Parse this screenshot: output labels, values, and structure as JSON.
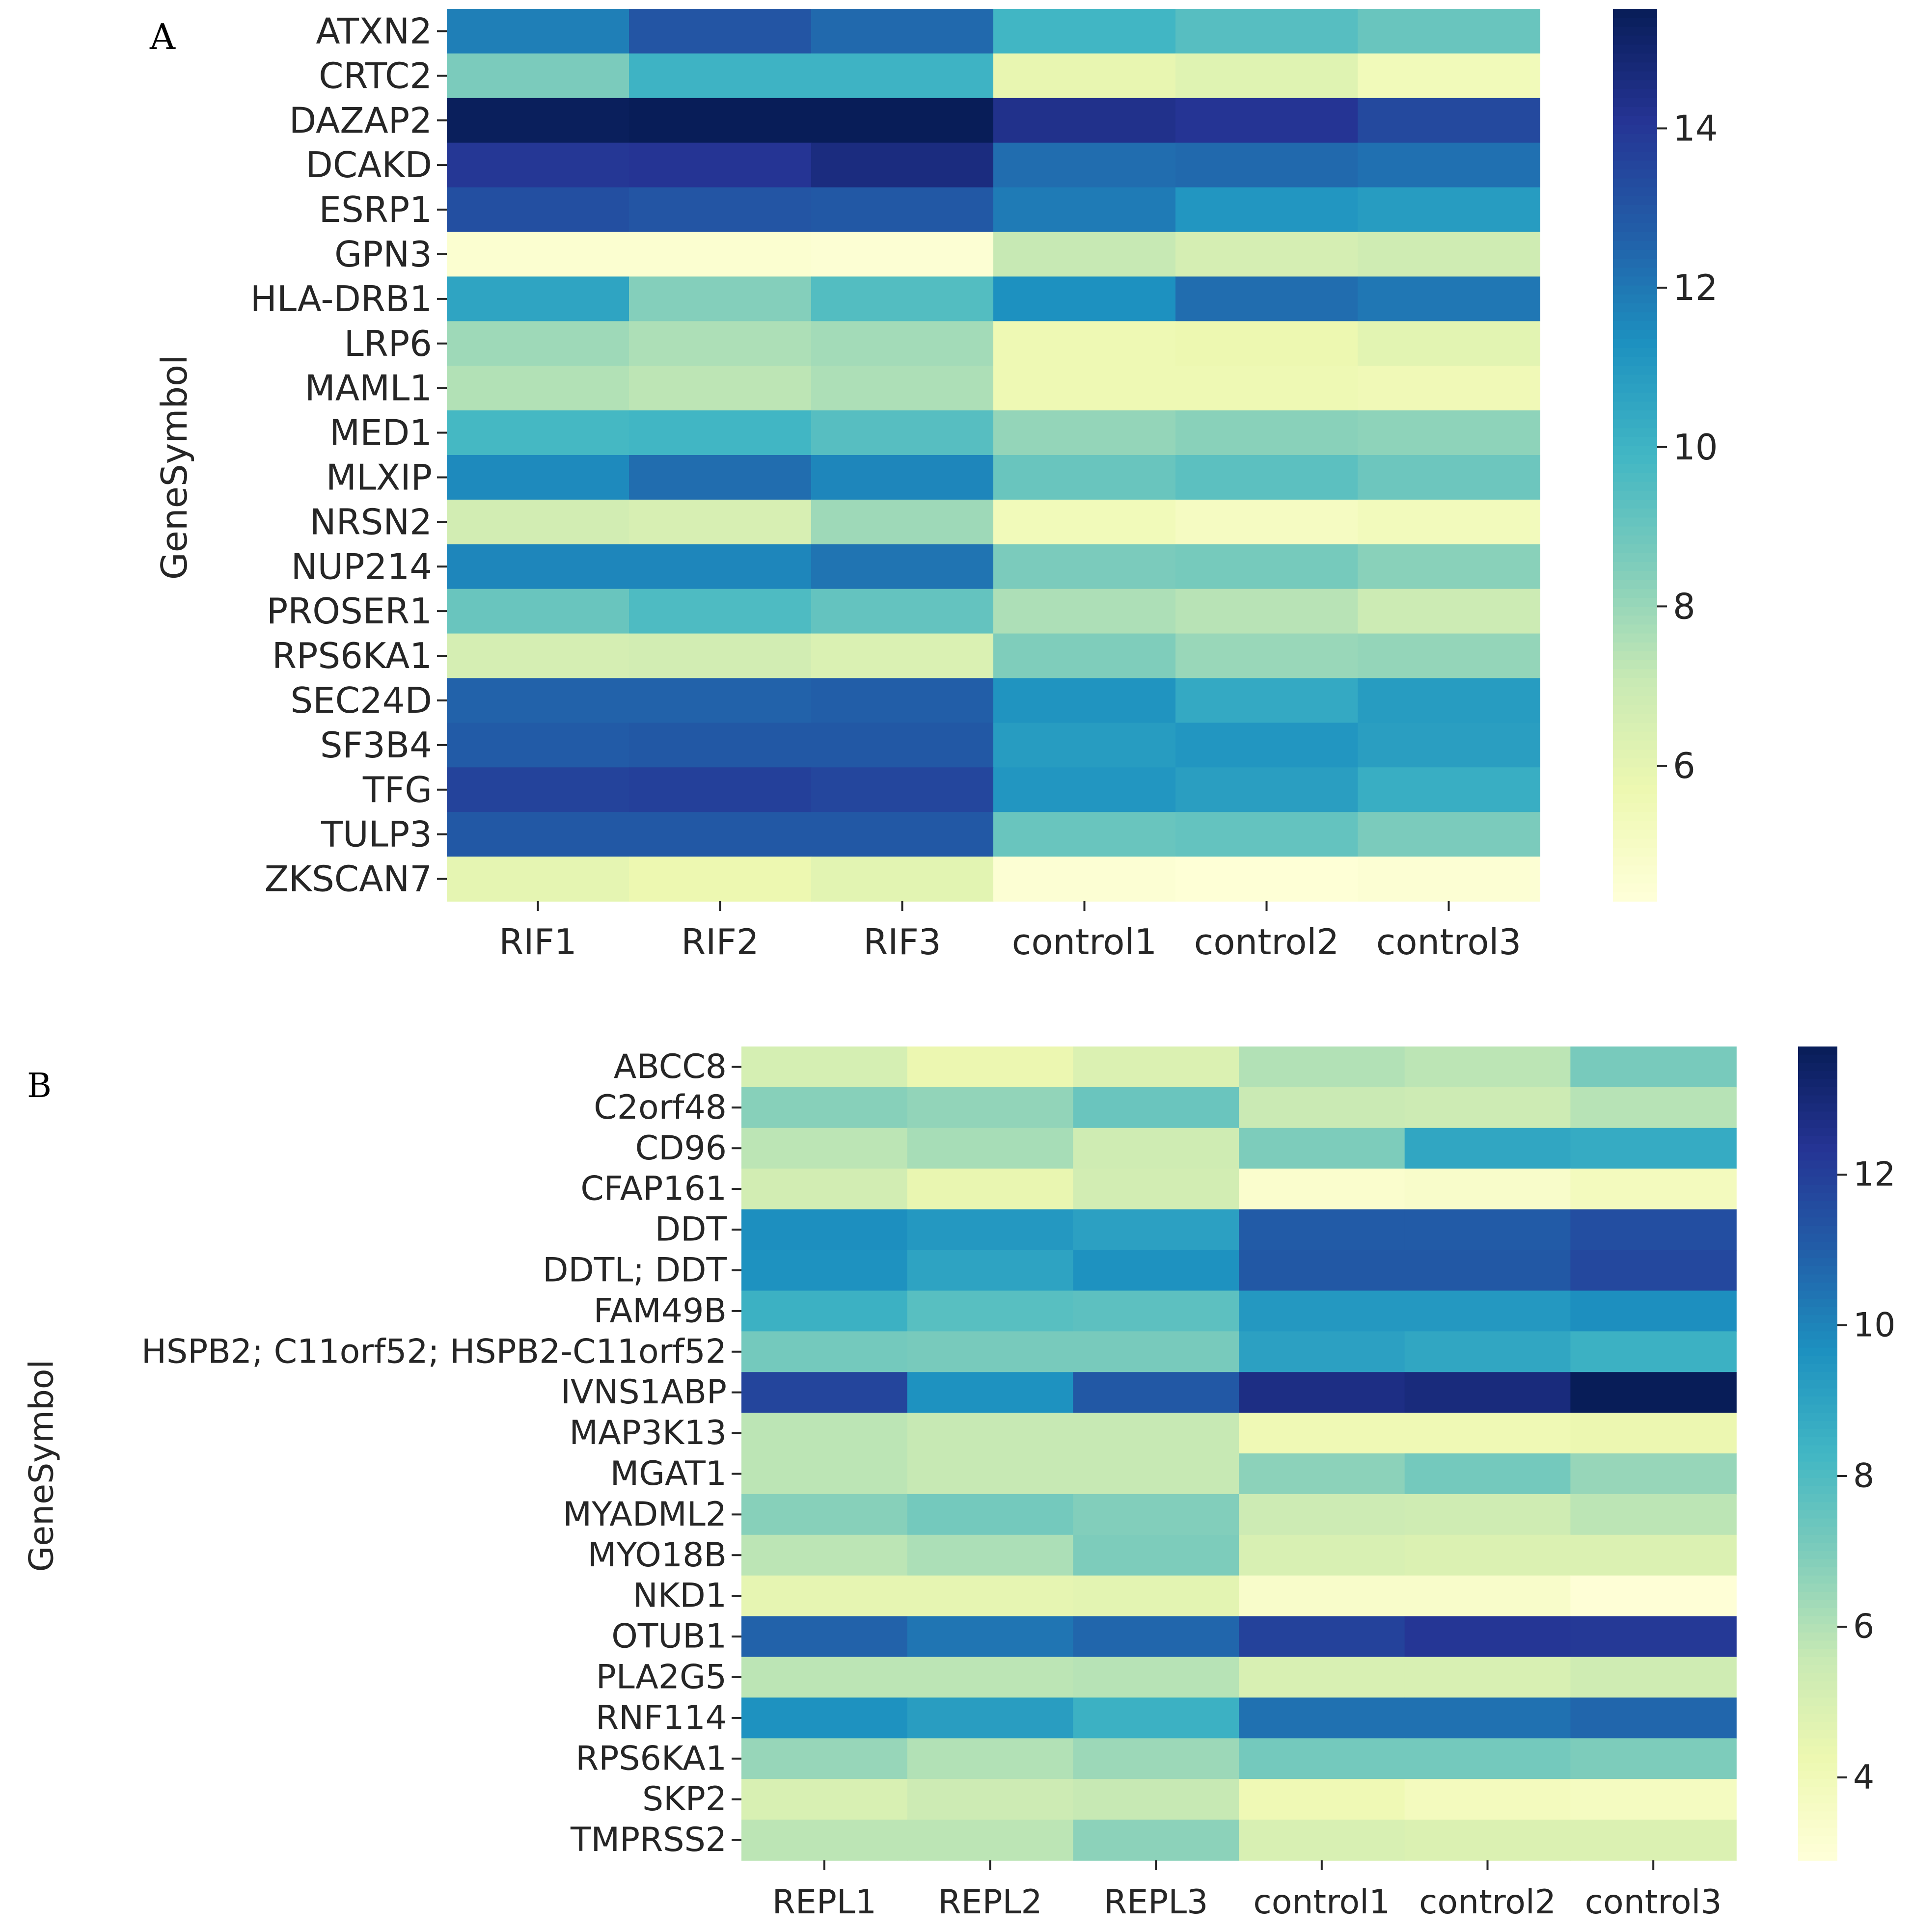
{
  "chart_data": [
    {
      "type": "heatmap",
      "panel_label": "A",
      "ylabel": "GeneSymbol",
      "xlabel": "",
      "colormap": "YlGnBu",
      "colorbar": {
        "min": 4.3,
        "max": 15.5,
        "ticks": [
          6,
          8,
          10,
          12,
          14
        ]
      },
      "columns": [
        "RIF1",
        "RIF2",
        "RIF3",
        "control1",
        "control2",
        "control3"
      ],
      "rows": [
        "ATXN2",
        "CRTC2",
        "DAZAP2",
        "DCAKD",
        "ESRP1",
        "GPN3",
        "HLA-DRB1",
        "LRP6",
        "MAML1",
        "MED1",
        "MLXIP",
        "NRSN2",
        "NUP214",
        "PROSER1",
        "RPS6KA1",
        "SEC24D",
        "SF3B4",
        "TFG",
        "TULP3",
        "ZKSCAN7"
      ],
      "values": [
        [
          11.8,
          13.0,
          12.4,
          9.9,
          9.4,
          9.0
        ],
        [
          8.6,
          10.0,
          10.0,
          5.9,
          6.2,
          5.4
        ],
        [
          15.4,
          15.5,
          15.5,
          14.3,
          14.1,
          13.4
        ],
        [
          14.0,
          14.1,
          14.6,
          12.3,
          12.4,
          12.2
        ],
        [
          13.2,
          13.0,
          12.9,
          11.9,
          11.1,
          10.9
        ],
        [
          4.6,
          4.6,
          4.5,
          7.1,
          6.6,
          6.8
        ],
        [
          10.6,
          8.4,
          9.5,
          11.3,
          12.3,
          12.0
        ],
        [
          7.9,
          7.6,
          7.8,
          5.6,
          5.7,
          6.1
        ],
        [
          7.5,
          7.3,
          7.6,
          5.6,
          5.6,
          5.5
        ],
        [
          9.8,
          9.9,
          9.4,
          8.1,
          8.3,
          8.2
        ],
        [
          11.5,
          12.3,
          11.6,
          9.0,
          9.3,
          8.9
        ],
        [
          6.7,
          6.5,
          7.9,
          5.4,
          5.1,
          5.3
        ],
        [
          11.6,
          11.6,
          12.1,
          8.6,
          8.7,
          8.3
        ],
        [
          9.0,
          9.6,
          9.1,
          7.6,
          7.4,
          6.9
        ],
        [
          6.6,
          6.7,
          6.4,
          8.5,
          8.0,
          8.1
        ],
        [
          12.6,
          12.6,
          12.7,
          11.2,
          10.4,
          10.9
        ],
        [
          12.8,
          12.9,
          12.9,
          10.9,
          11.1,
          10.8
        ],
        [
          13.6,
          13.7,
          13.5,
          11.1,
          10.8,
          10.2
        ],
        [
          12.9,
          12.9,
          12.9,
          9.0,
          9.1,
          8.6
        ],
        [
          6.0,
          5.7,
          6.1,
          4.5,
          4.4,
          4.5
        ]
      ]
    },
    {
      "type": "heatmap",
      "panel_label": "B",
      "ylabel": "GeneSymbol",
      "xlabel": "",
      "colormap": "YlGnBu",
      "colorbar": {
        "min": 2.9,
        "max": 13.7,
        "ticks": [
          4,
          6,
          8,
          10,
          12
        ]
      },
      "columns": [
        "REPL1",
        "REPL2",
        "REPL3",
        "control1",
        "control2",
        "control3"
      ],
      "rows": [
        "ABCC8",
        "C2orf48",
        "CD96",
        "CFAP161",
        "DDT",
        "DDTL; DDT",
        "FAM49B",
        "HSPB2; C11orf52; HSPB2-C11orf52",
        "IVNS1ABP",
        "MAP3K13",
        "MGAT1",
        "MYADML2",
        "MYO18B",
        "NKD1",
        "OTUB1",
        "PLA2G5",
        "RNF114",
        "RPS6KA1",
        "SKP2",
        "TMPRSS2"
      ],
      "values": [
        [
          5.1,
          4.3,
          4.9,
          6.0,
          5.8,
          7.1
        ],
        [
          6.8,
          6.6,
          7.4,
          5.5,
          5.4,
          5.9
        ],
        [
          5.8,
          6.2,
          5.3,
          7.0,
          8.9,
          8.7
        ],
        [
          5.2,
          4.4,
          5.2,
          3.3,
          3.4,
          3.8
        ],
        [
          9.7,
          9.4,
          9.1,
          11.1,
          11.1,
          11.5
        ],
        [
          9.6,
          9.0,
          9.6,
          11.2,
          11.2,
          11.7
        ],
        [
          8.5,
          7.8,
          7.7,
          9.4,
          9.4,
          9.7
        ],
        [
          7.2,
          7.1,
          7.1,
          9.1,
          8.9,
          8.5
        ],
        [
          11.8,
          9.6,
          11.2,
          12.7,
          12.9,
          13.7
        ],
        [
          5.8,
          5.6,
          5.6,
          4.1,
          4.1,
          4.3
        ],
        [
          5.8,
          5.6,
          5.6,
          6.7,
          7.2,
          6.5
        ],
        [
          6.8,
          7.2,
          6.9,
          5.4,
          5.3,
          5.8
        ],
        [
          5.8,
          6.1,
          7.0,
          5.0,
          4.9,
          4.9
        ],
        [
          4.5,
          4.5,
          4.6,
          3.4,
          3.4,
          3.0
        ],
        [
          10.9,
          10.4,
          10.8,
          11.9,
          12.3,
          12.2
        ],
        [
          5.8,
          5.8,
          5.9,
          5.0,
          5.0,
          5.3
        ],
        [
          9.6,
          9.2,
          8.5,
          10.5,
          10.5,
          10.8
        ],
        [
          6.5,
          6.0,
          6.4,
          7.2,
          7.2,
          7.0
        ],
        [
          5.0,
          5.4,
          5.6,
          4.1,
          3.8,
          3.7
        ],
        [
          5.8,
          5.8,
          6.7,
          5.0,
          4.9,
          4.9
        ]
      ]
    }
  ]
}
